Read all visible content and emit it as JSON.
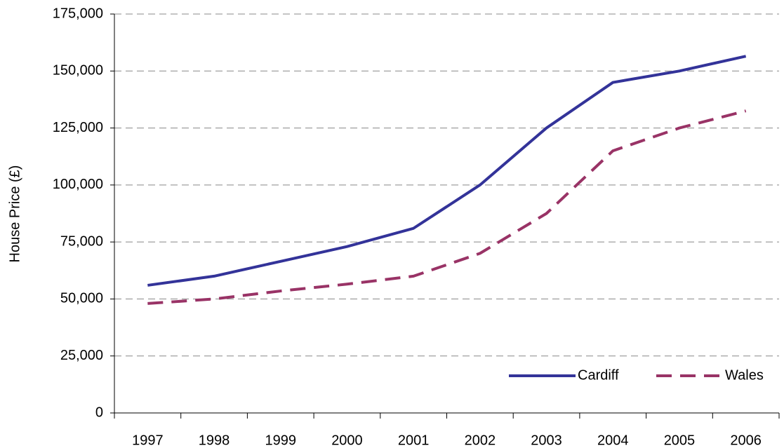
{
  "chart_data": {
    "type": "line",
    "y_label": "House Price (£)",
    "categories": [
      "1997",
      "1998",
      "1999",
      "2000",
      "2001",
      "2002",
      "2003",
      "2004",
      "2005",
      "2006"
    ],
    "series": [
      {
        "name": "Cardiff",
        "color": "#333399",
        "dash": false,
        "values": [
          56000,
          60000,
          66500,
          73000,
          81000,
          100000,
          125000,
          145000,
          150000,
          156500
        ]
      },
      {
        "name": "Wales",
        "color": "#993366",
        "dash": true,
        "values": [
          48000,
          50000,
          53500,
          56500,
          60000,
          70000,
          87500,
          115000,
          125000,
          132500
        ]
      }
    ],
    "ylim": [
      0,
      175000
    ],
    "yticks": [
      0,
      {
        "value": 25000,
        "label": "25,000"
      },
      {
        "value": 50000,
        "label": "50,000"
      },
      {
        "value": 75000,
        "label": "75,000"
      },
      {
        "value": 100000,
        "label": "100,000"
      },
      {
        "value": 125000,
        "label": "125,000"
      },
      {
        "value": 150000,
        "label": "150,000"
      },
      {
        "value": 175000,
        "label": "175,000"
      }
    ],
    "grid": true,
    "legend": "lower right"
  }
}
